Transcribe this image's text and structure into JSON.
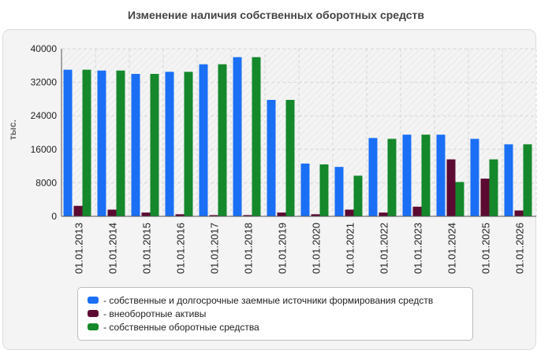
{
  "chart_data": {
    "type": "bar",
    "title": "Изменение наличия собственных оборотных средств",
    "ylabel": "тыс.",
    "xlabel": "",
    "ylim": [
      0,
      40000
    ],
    "yticks": [
      "0",
      "8000",
      "16000",
      "24000",
      "32000",
      "40000"
    ],
    "categories": [
      "01.01.2013",
      "01.01.2014",
      "01.01.2015",
      "01.01.2016",
      "01.01.2017",
      "01.01.2018",
      "01.01.2019",
      "01.01.2020",
      "01.01.2021",
      "01.01.2022",
      "01.01.2023",
      "01.01.2024",
      "01.01.2025",
      "01.01.2026"
    ],
    "series": [
      {
        "name": "- собственные и долгосрочные заемные источники формирования средств",
        "color": "#1a6ff5",
        "values": [
          35000,
          34800,
          34000,
          34500,
          36300,
          38000,
          27800,
          12600,
          11800,
          18700,
          19500,
          19500,
          18500,
          17200
        ]
      },
      {
        "name": "- внеоборотные активы",
        "color": "#5c0a32",
        "values": [
          2500,
          1600,
          900,
          500,
          300,
          300,
          900,
          500,
          1600,
          900,
          2300,
          13600,
          9000,
          1400
        ]
      },
      {
        "name": "- собственные оборотные средства",
        "color": "#14882b",
        "values": [
          35000,
          34800,
          34000,
          34500,
          36300,
          38000,
          27800,
          12400,
          9700,
          18500,
          19500,
          8200,
          13600,
          17200
        ]
      }
    ],
    "grid": true,
    "legend_position": "bottom"
  }
}
